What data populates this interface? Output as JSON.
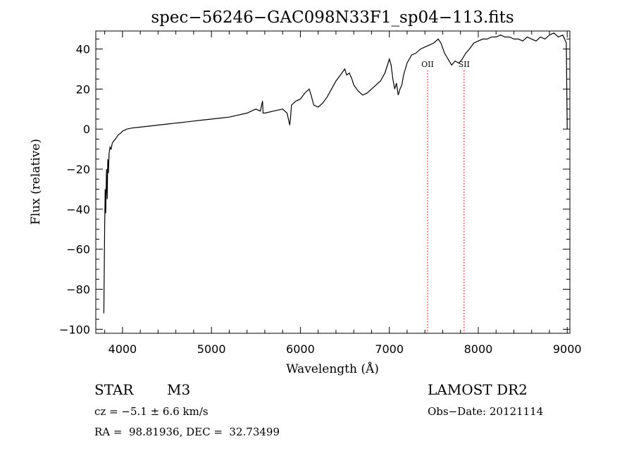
{
  "chart_data": {
    "type": "line",
    "title": "spec−56246−GAC098N33F1_sp04−113.fits",
    "xlabel": "Wavelength (Å)",
    "ylabel": "Flux (relative)",
    "xlim": [
      3700,
      9030
    ],
    "ylim": [
      -102,
      49
    ],
    "x_ticks": [
      4000,
      5000,
      6000,
      7000,
      8000,
      9000
    ],
    "y_ticks": [
      -100,
      -80,
      -60,
      -40,
      -20,
      0,
      20,
      40
    ],
    "x_tick_labels": [
      "4000",
      "5000",
      "6000",
      "7000",
      "8000",
      "9000"
    ],
    "y_tick_labels": [
      "−100",
      "−80",
      "−60",
      "−40",
      "−20",
      "0",
      "20",
      "40"
    ],
    "series": [
      {
        "x": [
          3790,
          3800,
          3805,
          3812,
          3820,
          3828,
          3835,
          3842,
          3850,
          3860,
          3872,
          3885,
          3900,
          3920,
          3950,
          3980,
          4000,
          4050,
          4100,
          4200,
          4300,
          4400,
          4500,
          4600,
          4700,
          4800,
          4900,
          5000,
          5100,
          5200,
          5300,
          5400,
          5450,
          5500,
          5550,
          5575,
          5580,
          5600,
          5700,
          5800,
          5850,
          5880,
          5890,
          5900,
          5950,
          6000,
          6050,
          6100,
          6120,
          6150,
          6200,
          6250,
          6300,
          6350,
          6400,
          6450,
          6500,
          6520,
          6550,
          6580,
          6600,
          6650,
          6700,
          6750,
          6800,
          6850,
          6900,
          6950,
          7000,
          7020,
          7040,
          7060,
          7080,
          7100,
          7120,
          7140,
          7160,
          7180,
          7200,
          7250,
          7300,
          7350,
          7400,
          7450,
          7500,
          7550,
          7580,
          7620,
          7660,
          7700,
          7740,
          7780,
          7820,
          7860,
          7900,
          7950,
          8000,
          8050,
          8100,
          8150,
          8200,
          8250,
          8300,
          8350,
          8400,
          8450,
          8500,
          8550,
          8600,
          8650,
          8700,
          8750,
          8800,
          8850,
          8900,
          8950,
          8990,
          9000
        ],
        "y": [
          -92,
          -48,
          -30,
          -42,
          -20,
          -35,
          -15,
          -22,
          -12,
          -9,
          -10,
          -7,
          -6,
          -5,
          -3,
          -2,
          -1,
          0,
          0.5,
          1,
          1.5,
          2,
          2.5,
          3,
          3.5,
          4,
          4.5,
          5,
          5.5,
          6,
          7,
          8,
          9,
          10,
          9,
          14,
          8,
          8,
          9,
          10,
          8,
          2,
          6,
          12,
          14,
          15,
          18,
          20,
          17,
          12,
          11,
          13,
          16,
          20,
          24,
          27,
          30,
          27,
          28,
          25,
          22,
          19,
          17,
          18,
          20,
          22,
          24,
          28,
          35,
          32,
          25,
          20,
          23,
          17,
          20,
          22,
          27,
          30,
          33,
          37,
          38,
          40,
          41,
          42,
          43,
          45,
          43,
          38,
          35,
          32,
          34,
          33,
          35,
          38,
          40,
          43,
          44,
          45,
          45,
          46,
          46,
          47,
          46,
          46,
          45,
          45,
          44,
          46,
          45,
          44,
          46,
          45,
          47,
          48,
          46,
          47,
          43,
          0
        ]
      }
    ],
    "annotations": [
      {
        "label": "OII",
        "x": 7430
      },
      {
        "label": "SII",
        "x": 7840
      }
    ]
  },
  "info": {
    "object_class": "STAR",
    "subclass": "M3",
    "survey": "LAMOST DR2",
    "cz": "cz = −5.1 ± 6.6 km/s",
    "obs_date": "Obs−Date: 20121114",
    "coords": "RA =  98.81936, DEC =  32.73499"
  }
}
